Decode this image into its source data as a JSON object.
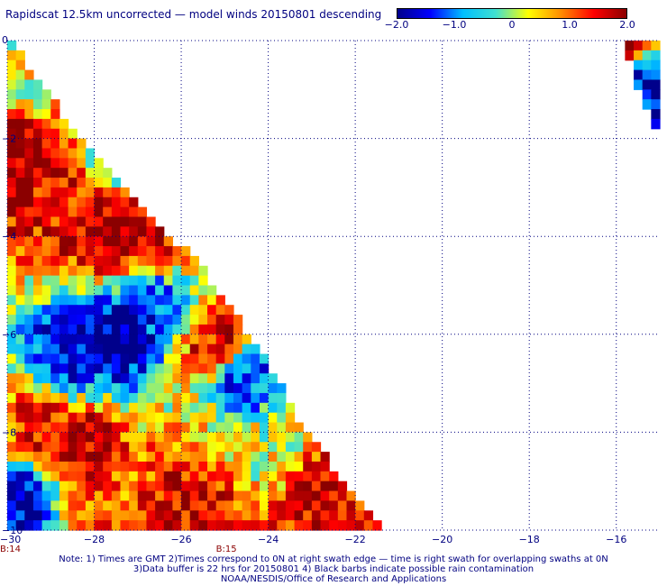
{
  "title": "Rapidscat 12.5km uncorrected — model winds 20150801 descending",
  "colorbar": {
    "ticks": [
      "−2.0",
      "−1.0",
      "0",
      "1.0",
      "2.0"
    ],
    "tick_values": [
      -2.0,
      -1.0,
      0,
      1.0,
      2.0
    ],
    "range": [
      -2.0,
      2.0
    ],
    "colors": [
      "#00008b",
      "#0000ff",
      "#00bfff",
      "#40e0d0",
      "#ffff00",
      "#ff8c00",
      "#ff0000",
      "#8b0000"
    ]
  },
  "chart_data": {
    "type": "heatmap",
    "title": "Rapidscat 12.5km uncorrected — model winds 20150801 descending",
    "xlabel": "",
    "ylabel": "",
    "xlim": [
      -30,
      -15
    ],
    "ylim": [
      -10,
      0
    ],
    "x_ticks": [
      -30,
      -28,
      -26,
      -24,
      -22,
      -20,
      -18,
      -16
    ],
    "x_tick_labels": [
      "−30",
      "−28",
      "−26",
      "−24",
      "−22",
      "−20",
      "−18",
      "−16"
    ],
    "y_ticks": [
      0,
      -2,
      -4,
      -6,
      -8,
      -10
    ],
    "y_tick_labels": [
      "0",
      "−2",
      "−4",
      "−6",
      "−8",
      "−10"
    ],
    "grid": true,
    "value_range": [
      -2.0,
      2.0
    ],
    "time_labels": [
      {
        "text": "B:14",
        "x": -30
      },
      {
        "text": "B:15",
        "x": -25.2
      }
    ],
    "swaths": [
      {
        "name": "",
        "edge": [
          [
            -29.9,
            0
          ],
          [
            -28.8,
            -1.4
          ],
          [
            -28.2,
            -2.1
          ],
          [
            -27.5,
            -2.8
          ],
          [
            -26.6,
            -3.8
          ],
          [
            -25.8,
            -4.3
          ],
          [
            -24.8,
            -5.5
          ],
          [
            -24.0,
            -6.6
          ],
          [
            -23.3,
            -7.7
          ],
          [
            -22.6,
            -8.6
          ],
          [
            -21.8,
            -9.5
          ],
          [
            -21.3,
            -10
          ]
        ]
      },
      {
        "name": "",
        "edge": [
          [
            -15.9,
            0
          ],
          [
            -15.2,
            -1.8
          ]
        ]
      }
    ],
    "regions": [
      {
        "lon": -29.8,
        "lat": -2.3,
        "value": 2.0
      },
      {
        "lon": -28.6,
        "lat": -3.4,
        "value": 1.5
      },
      {
        "lon": -27.6,
        "lat": -3.9,
        "value": 2.0
      },
      {
        "lon": -26.7,
        "lat": -4.2,
        "value": 1.6
      },
      {
        "lon": -27.1,
        "lat": -2.2,
        "value": -1.6
      },
      {
        "lon": -27.4,
        "lat": -6.0,
        "value": -2.0
      },
      {
        "lon": -28.6,
        "lat": -6.6,
        "value": -1.6
      },
      {
        "lon": -26.6,
        "lat": -5.3,
        "value": -1.2
      },
      {
        "lon": -29.1,
        "lat": -7.8,
        "value": 1.5
      },
      {
        "lon": -28.4,
        "lat": -8.2,
        "value": 1.8
      },
      {
        "lon": -25.2,
        "lat": -6.1,
        "value": 1.6
      },
      {
        "lon": -24.6,
        "lat": -7.0,
        "value": -1.3
      },
      {
        "lon": -25.7,
        "lat": -9.2,
        "value": 1.7
      },
      {
        "lon": -22.8,
        "lat": -9.5,
        "value": 1.6
      },
      {
        "lon": -29.6,
        "lat": -9.5,
        "value": -1.8
      },
      {
        "lon": -28.2,
        "lat": -9.6,
        "value": 1.0
      },
      {
        "lon": -29.5,
        "lat": -0.8,
        "value": 0.3
      },
      {
        "lon": -25.5,
        "lat": -8.2,
        "value": 0.5
      },
      {
        "lon": -24.2,
        "lat": -8.3,
        "value": 0.2
      },
      {
        "lon": -15.9,
        "lat": -0.1,
        "value": 1.8
      },
      {
        "lon": -15.4,
        "lat": -0.9,
        "value": -1.6
      }
    ]
  },
  "notes": [
    "Note: 1) Times are GMT 2)Times correspond to 0N at right swath edge — time is right swath for overlapping swaths at 0N",
    "3)Data buffer is 22 hrs for 20150801 4) Black barbs indicate possible rain contamination",
    "NOAA/NESDIS/Office of Research and Applications"
  ]
}
